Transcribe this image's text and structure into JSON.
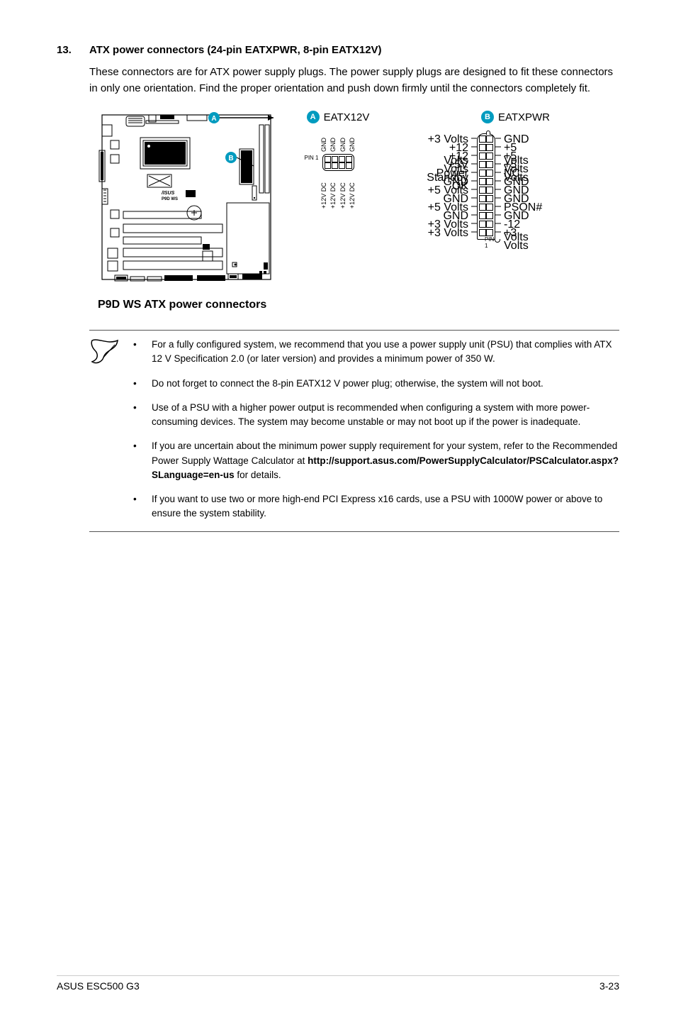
{
  "heading": {
    "number": "13.",
    "title": "ATX power connectors (24-pin EATXPWR, 8-pin EATX12V)"
  },
  "intro": "These connectors are for ATX power supply plugs. The power supply plugs are designed to fit these connectors in only one orientation. Find the proper orientation and push down firmly until the connectors completely fit.",
  "diagram": {
    "caption": "P9D WS ATX power connectors",
    "board_label": "P9D WS",
    "brand_label": "/ISUS",
    "badge_a": "A",
    "badge_b": "B",
    "badge_color": "#009bbf",
    "eatx12v": {
      "label": "EATX12V",
      "top_labels": [
        "GND",
        "GND",
        "GND",
        "GND"
      ],
      "bottom_labels": [
        "+12V DC",
        "+12V DC",
        "+12V DC",
        "+12V DC"
      ],
      "pin1": "PIN 1"
    },
    "eatxpwr": {
      "label": "EATXPWR",
      "pin1": "PIN 1",
      "rows": [
        {
          "l": "+3 Volts",
          "r": "GND"
        },
        {
          "l": "+12 Volts",
          "r": "+5 Volts"
        },
        {
          "l": "+12 Volts",
          "r": "+5 Volts"
        },
        {
          "l": "+5V Standby",
          "r": "+5 Volts"
        },
        {
          "l": "Power OK",
          "r": "NC"
        },
        {
          "l": "GND",
          "r": "GND"
        },
        {
          "l": "+5 Volts",
          "r": "GND"
        },
        {
          "l": "GND",
          "r": "GND"
        },
        {
          "l": "+5 Volts",
          "r": "PSON#"
        },
        {
          "l": "GND",
          "r": "GND"
        },
        {
          "l": "+3 Volts",
          "r": "-12 Volts"
        },
        {
          "l": "+3 Volts",
          "r": "+3 Volts"
        }
      ]
    }
  },
  "notes": [
    {
      "text": "For a fully configured system, we recommend that you use a power supply unit (PSU) that complies with ATX 12 V Specification 2.0 (or later version) and provides a minimum power of 350 W."
    },
    {
      "text": "Do not forget to connect the 8-pin EATX12 V power plug; otherwise, the system will not boot."
    },
    {
      "text": "Use of a PSU with a higher power output is recommended when configuring a system with more power-consuming devices. The system may become unstable or may not boot up if the power is inadequate."
    },
    {
      "prefix": "If you are uncertain about the minimum power supply requirement for your system, refer to the Recommended Power Supply Wattage Calculator at ",
      "bold": "http://support.asus.com/PowerSupplyCalculator/PSCalculator.aspx?SLanguage=en-us",
      "suffix": " for details."
    },
    {
      "text": "If you want to use two or more high-end PCI Express x16 cards, use a PSU with 1000W power or above to ensure the system stability."
    }
  ],
  "footer": {
    "left": "ASUS ESC500 G3",
    "right": "3-23"
  }
}
